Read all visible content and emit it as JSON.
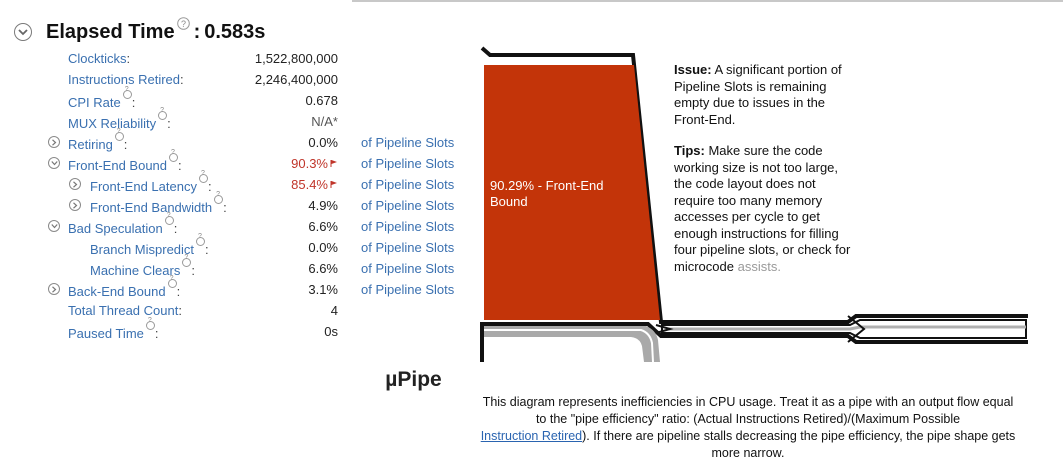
{
  "header": {
    "title": "Elapsed Time",
    "colon": ":",
    "value": "0.583s"
  },
  "metrics": [
    {
      "label": "Clockticks",
      "suffix": ":",
      "value": "1,522,800,000",
      "unit": ""
    },
    {
      "label": "Instructions Retired",
      "suffix": ":",
      "value": "2,246,400,000",
      "unit": ""
    },
    {
      "label": "CPI Rate",
      "suffix": ":",
      "value": "0.678",
      "unit": ""
    },
    {
      "label": "MUX Reliability",
      "suffix": ":",
      "value": "N/A*",
      "unit": ""
    },
    {
      "label": "Retiring",
      "suffix": ":",
      "value": "0.0%",
      "unit": "of Pipeline Slots"
    },
    {
      "label": "Front-End Bound",
      "suffix": ":",
      "value": "90.3%",
      "unit": "of Pipeline Slots"
    },
    {
      "label": "Front-End Latency",
      "suffix": ":",
      "value": "85.4%",
      "unit": "of Pipeline Slots"
    },
    {
      "label": "Front-End Bandwidth",
      "suffix": ":",
      "value": "4.9%",
      "unit": "of Pipeline Slots"
    },
    {
      "label": "Bad Speculation",
      "suffix": ":",
      "value": "6.6%",
      "unit": "of Pipeline Slots"
    },
    {
      "label": "Branch Mispredict",
      "suffix": ":",
      "value": "0.0%",
      "unit": "of Pipeline Slots"
    },
    {
      "label": "Machine Clears",
      "suffix": ":",
      "value": "6.6%",
      "unit": "of Pipeline Slots"
    },
    {
      "label": "Back-End Bound",
      "suffix": ":",
      "value": "3.1%",
      "unit": "of Pipeline Slots"
    },
    {
      "label": "Total Thread Count",
      "suffix": ":",
      "value": "4",
      "unit": ""
    },
    {
      "label": "Paused Time",
      "suffix": ":",
      "value": "0s",
      "unit": ""
    }
  ],
  "colors": {
    "front_end_fill": "#c33409",
    "link": "#3a70b0",
    "flagged_value": "#c0352a"
  },
  "pipe": {
    "front_end_label": "90.29% - Front-End Bound"
  },
  "issue": {
    "heading": "Issue:",
    "text": "A significant portion of Pipeline Slots is remaining empty due to issues in the Front-End."
  },
  "tips": {
    "heading": "Tips:",
    "text": "Make sure the code working size is not too large, the code layout does not require too many memory accesses per cycle to get enough instructions for filling four pipeline slots, or check for microcode",
    "faded": "assists."
  },
  "upipe": {
    "title": "µPipe",
    "caption_before": "This diagram represents inefficiencies in CPU usage. Treat it as a pipe with an output flow equal to the \"pipe efficiency\" ratio: (Actual Instructions Retired)/(Maximum Possible",
    "caption_link": "Instruction Retired",
    "caption_after": "). If there are pipeline stalls decreasing the pipe efficiency, the pipe shape gets more narrow."
  }
}
